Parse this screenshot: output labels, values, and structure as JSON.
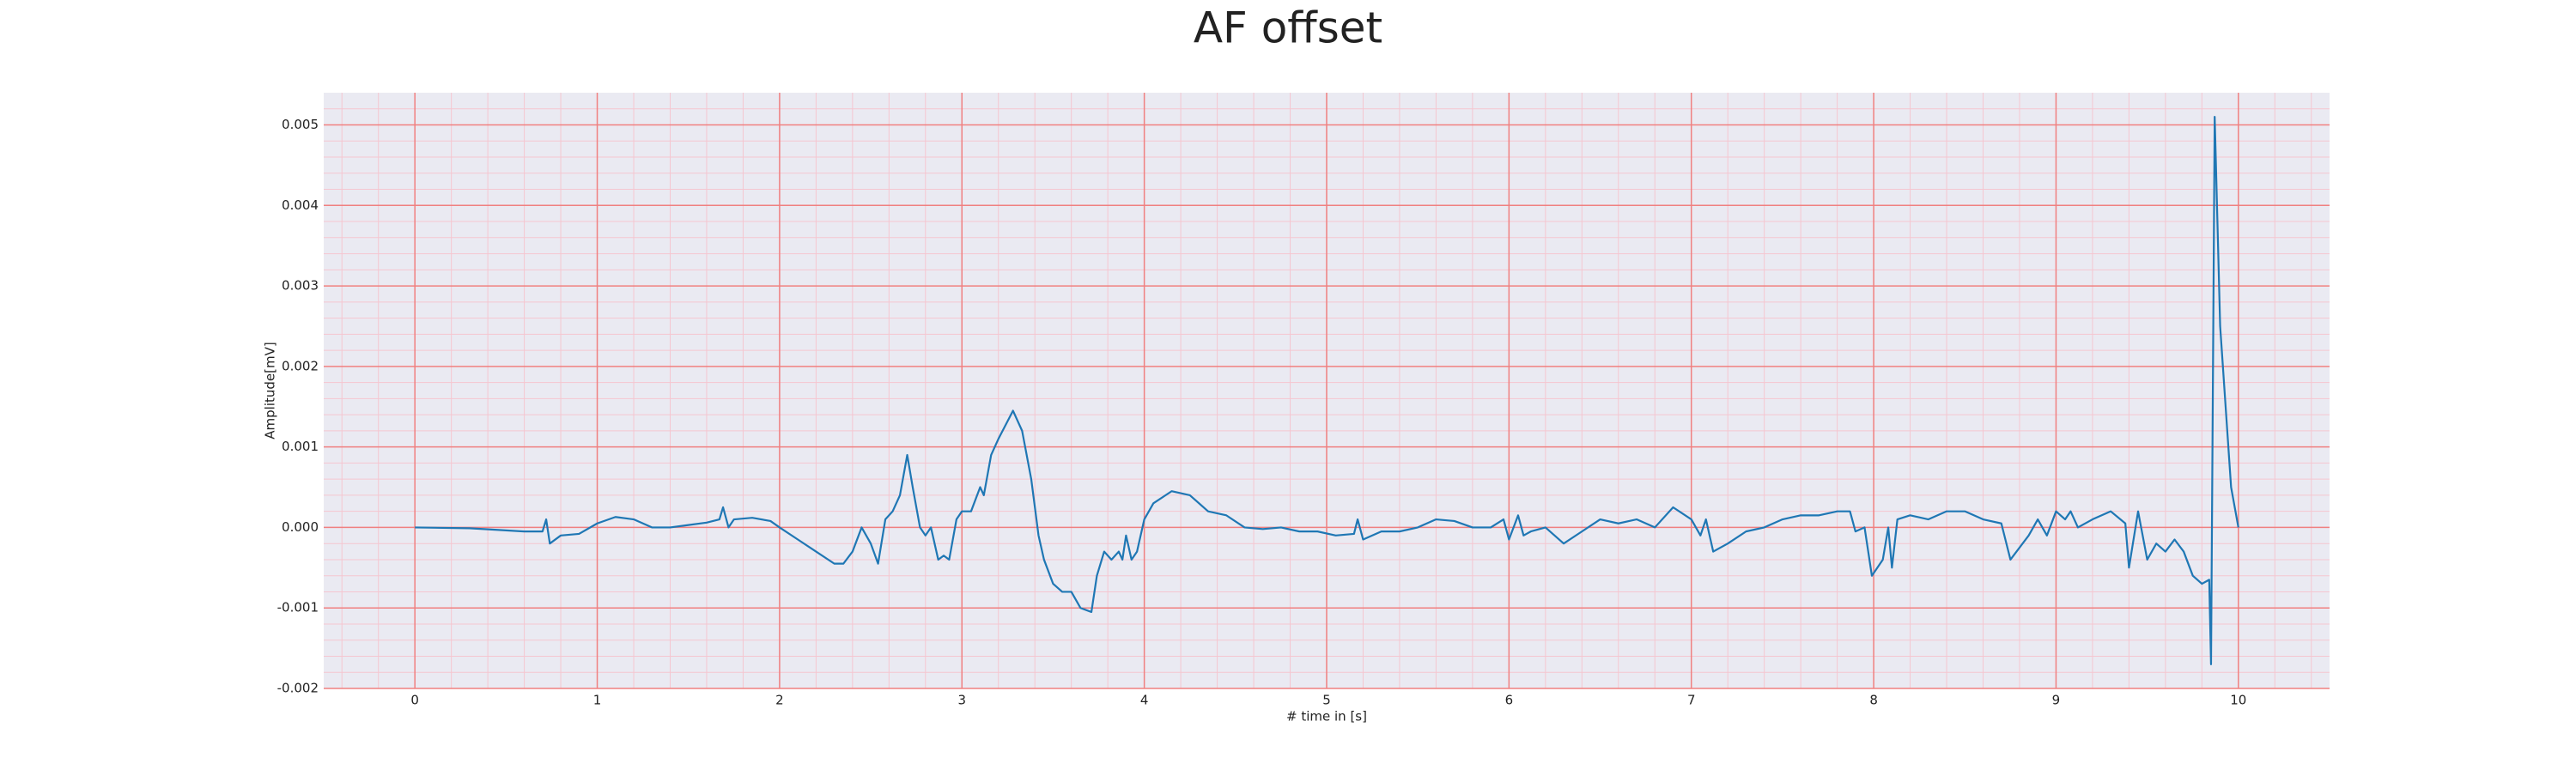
{
  "chart_data": {
    "type": "line",
    "title": "AF offset",
    "xlabel": "# time in [s]",
    "ylabel": "Amplitude[mV]",
    "color": "#1f77b4",
    "background": "#eaeaf2",
    "grid": true,
    "grid_color": "#f08080",
    "minor_grid_color": "#f5c6d0",
    "xlim": [
      -0.5,
      10.5
    ],
    "ylim": [
      -0.002,
      0.0054
    ],
    "xticks": [
      0,
      1,
      2,
      3,
      4,
      5,
      6,
      7,
      8,
      9,
      10
    ],
    "yticks": [
      -0.002,
      -0.001,
      {
        "value": 0,
        "label": "0.000"
      },
      0.001,
      0.002,
      0.003,
      0.004,
      0.005
    ],
    "xminor": [
      -0.4,
      -0.2,
      0.2,
      0.4,
      0.6,
      0.8,
      1.2,
      1.4,
      1.6,
      1.8,
      2.2,
      2.4,
      2.6,
      2.8,
      3.2,
      3.4,
      3.6,
      3.8,
      4.2,
      4.4,
      4.6,
      4.8,
      5.2,
      5.4,
      5.6,
      5.8,
      6.2,
      6.4,
      6.6,
      6.8,
      7.2,
      7.4,
      7.6,
      7.8,
      8.2,
      8.4,
      8.6,
      8.8,
      9.2,
      9.4,
      9.6,
      9.8,
      10.2,
      10.4
    ],
    "yminor": [
      -0.0018,
      -0.0016,
      -0.0014,
      -0.0012,
      -0.0008,
      -0.0006,
      -0.0004,
      -0.0002,
      0.0002,
      0.0004,
      0.0006,
      0.0008,
      0.0012,
      0.0014,
      0.0016,
      0.0018,
      0.0022,
      0.0024,
      0.0026,
      0.0028,
      0.0032,
      0.0034,
      0.0036,
      0.0038,
      0.0042,
      0.0044,
      0.0046,
      0.0048,
      0.0052
    ],
    "x": [
      0,
      0.3,
      0.6,
      0.7,
      0.72,
      0.74,
      0.8,
      0.9,
      1.0,
      1.1,
      1.2,
      1.3,
      1.4,
      1.5,
      1.6,
      1.67,
      1.69,
      1.72,
      1.75,
      1.85,
      1.95,
      2.0,
      2.1,
      2.2,
      2.3,
      2.35,
      2.4,
      2.45,
      2.5,
      2.54,
      2.58,
      2.62,
      2.66,
      2.7,
      2.73,
      2.77,
      2.8,
      2.83,
      2.87,
      2.9,
      2.93,
      2.97,
      3.0,
      3.05,
      3.1,
      3.12,
      3.16,
      3.2,
      3.28,
      3.33,
      3.38,
      3.42,
      3.45,
      3.5,
      3.55,
      3.6,
      3.65,
      3.71,
      3.74,
      3.78,
      3.82,
      3.86,
      3.88,
      3.9,
      3.93,
      3.96,
      4.0,
      4.05,
      4.15,
      4.25,
      4.35,
      4.45,
      4.55,
      4.65,
      4.75,
      4.85,
      4.95,
      5.05,
      5.15,
      5.17,
      5.2,
      5.3,
      5.4,
      5.5,
      5.6,
      5.7,
      5.8,
      5.9,
      5.97,
      6.0,
      6.05,
      6.08,
      6.12,
      6.2,
      6.3,
      6.4,
      6.5,
      6.6,
      6.7,
      6.8,
      6.9,
      7.0,
      7.05,
      7.08,
      7.12,
      7.2,
      7.3,
      7.4,
      7.5,
      7.6,
      7.7,
      7.8,
      7.87,
      7.9,
      7.95,
      7.99,
      8.05,
      8.08,
      8.1,
      8.13,
      8.2,
      8.3,
      8.4,
      8.5,
      8.6,
      8.7,
      8.75,
      8.85,
      8.9,
      8.95,
      9.0,
      9.05,
      9.08,
      9.12,
      9.2,
      9.3,
      9.38,
      9.4,
      9.45,
      9.5,
      9.55,
      9.6,
      9.65,
      9.7,
      9.75,
      9.8,
      9.84,
      9.85,
      9.87,
      9.9,
      9.93,
      9.96,
      10.0
    ],
    "values": [
      0,
      -1e-05,
      -5e-05,
      -5e-05,
      0.0001,
      -0.0002,
      -0.0001,
      -8e-05,
      5e-05,
      0.00013,
      0.0001,
      0,
      0,
      3e-05,
      6e-05,
      0.0001,
      0.00025,
      0,
      0.0001,
      0.00012,
      8e-05,
      0,
      -0.00015,
      -0.0003,
      -0.00045,
      -0.00045,
      -0.0003,
      0,
      -0.0002,
      -0.00045,
      0.0001,
      0.0002,
      0.0004,
      0.0009,
      0.0005,
      0,
      -0.0001,
      0,
      -0.0004,
      -0.00035,
      -0.0004,
      0.0001,
      0.0002,
      0.0002,
      0.0005,
      0.0004,
      0.0009,
      0.0011,
      0.00145,
      0.0012,
      0.0006,
      -0.0001,
      -0.0004,
      -0.0007,
      -0.0008,
      -0.0008,
      -0.001,
      -0.00105,
      -0.0006,
      -0.0003,
      -0.0004,
      -0.0003,
      -0.0004,
      -0.0001,
      -0.0004,
      -0.0003,
      0.0001,
      0.0003,
      0.00045,
      0.0004,
      0.0002,
      0.00015,
      0,
      -2e-05,
      0,
      -5e-05,
      -5e-05,
      -0.0001,
      -8e-05,
      0.0001,
      -0.00015,
      -5e-05,
      -5e-05,
      0,
      0.0001,
      8e-05,
      0,
      0,
      0.0001,
      -0.00015,
      0.00015,
      -0.0001,
      -5e-05,
      0,
      -0.0002,
      -5e-05,
      0.0001,
      5e-05,
      0.0001,
      0,
      0.00025,
      0.0001,
      -0.0001,
      0.0001,
      -0.0003,
      -0.0002,
      -5e-05,
      0,
      0.0001,
      0.00015,
      0.00015,
      0.0002,
      0.0002,
      -5e-05,
      0,
      -0.0006,
      -0.0004,
      0,
      -0.0005,
      0.0001,
      0.00015,
      0.0001,
      0.0002,
      0.0002,
      0.0001,
      5e-05,
      -0.0004,
      -0.0001,
      0.0001,
      -0.0001,
      0.0002,
      0.0001,
      0.0002,
      0,
      0.0001,
      0.0002,
      5e-05,
      -0.0005,
      0.0002,
      -0.0004,
      -0.0002,
      -0.0003,
      -0.00015,
      -0.0003,
      -0.0006,
      -0.0007,
      -0.00065,
      -0.0017,
      0.0051,
      0.0025,
      0.0015,
      0.0005,
      0
    ]
  }
}
